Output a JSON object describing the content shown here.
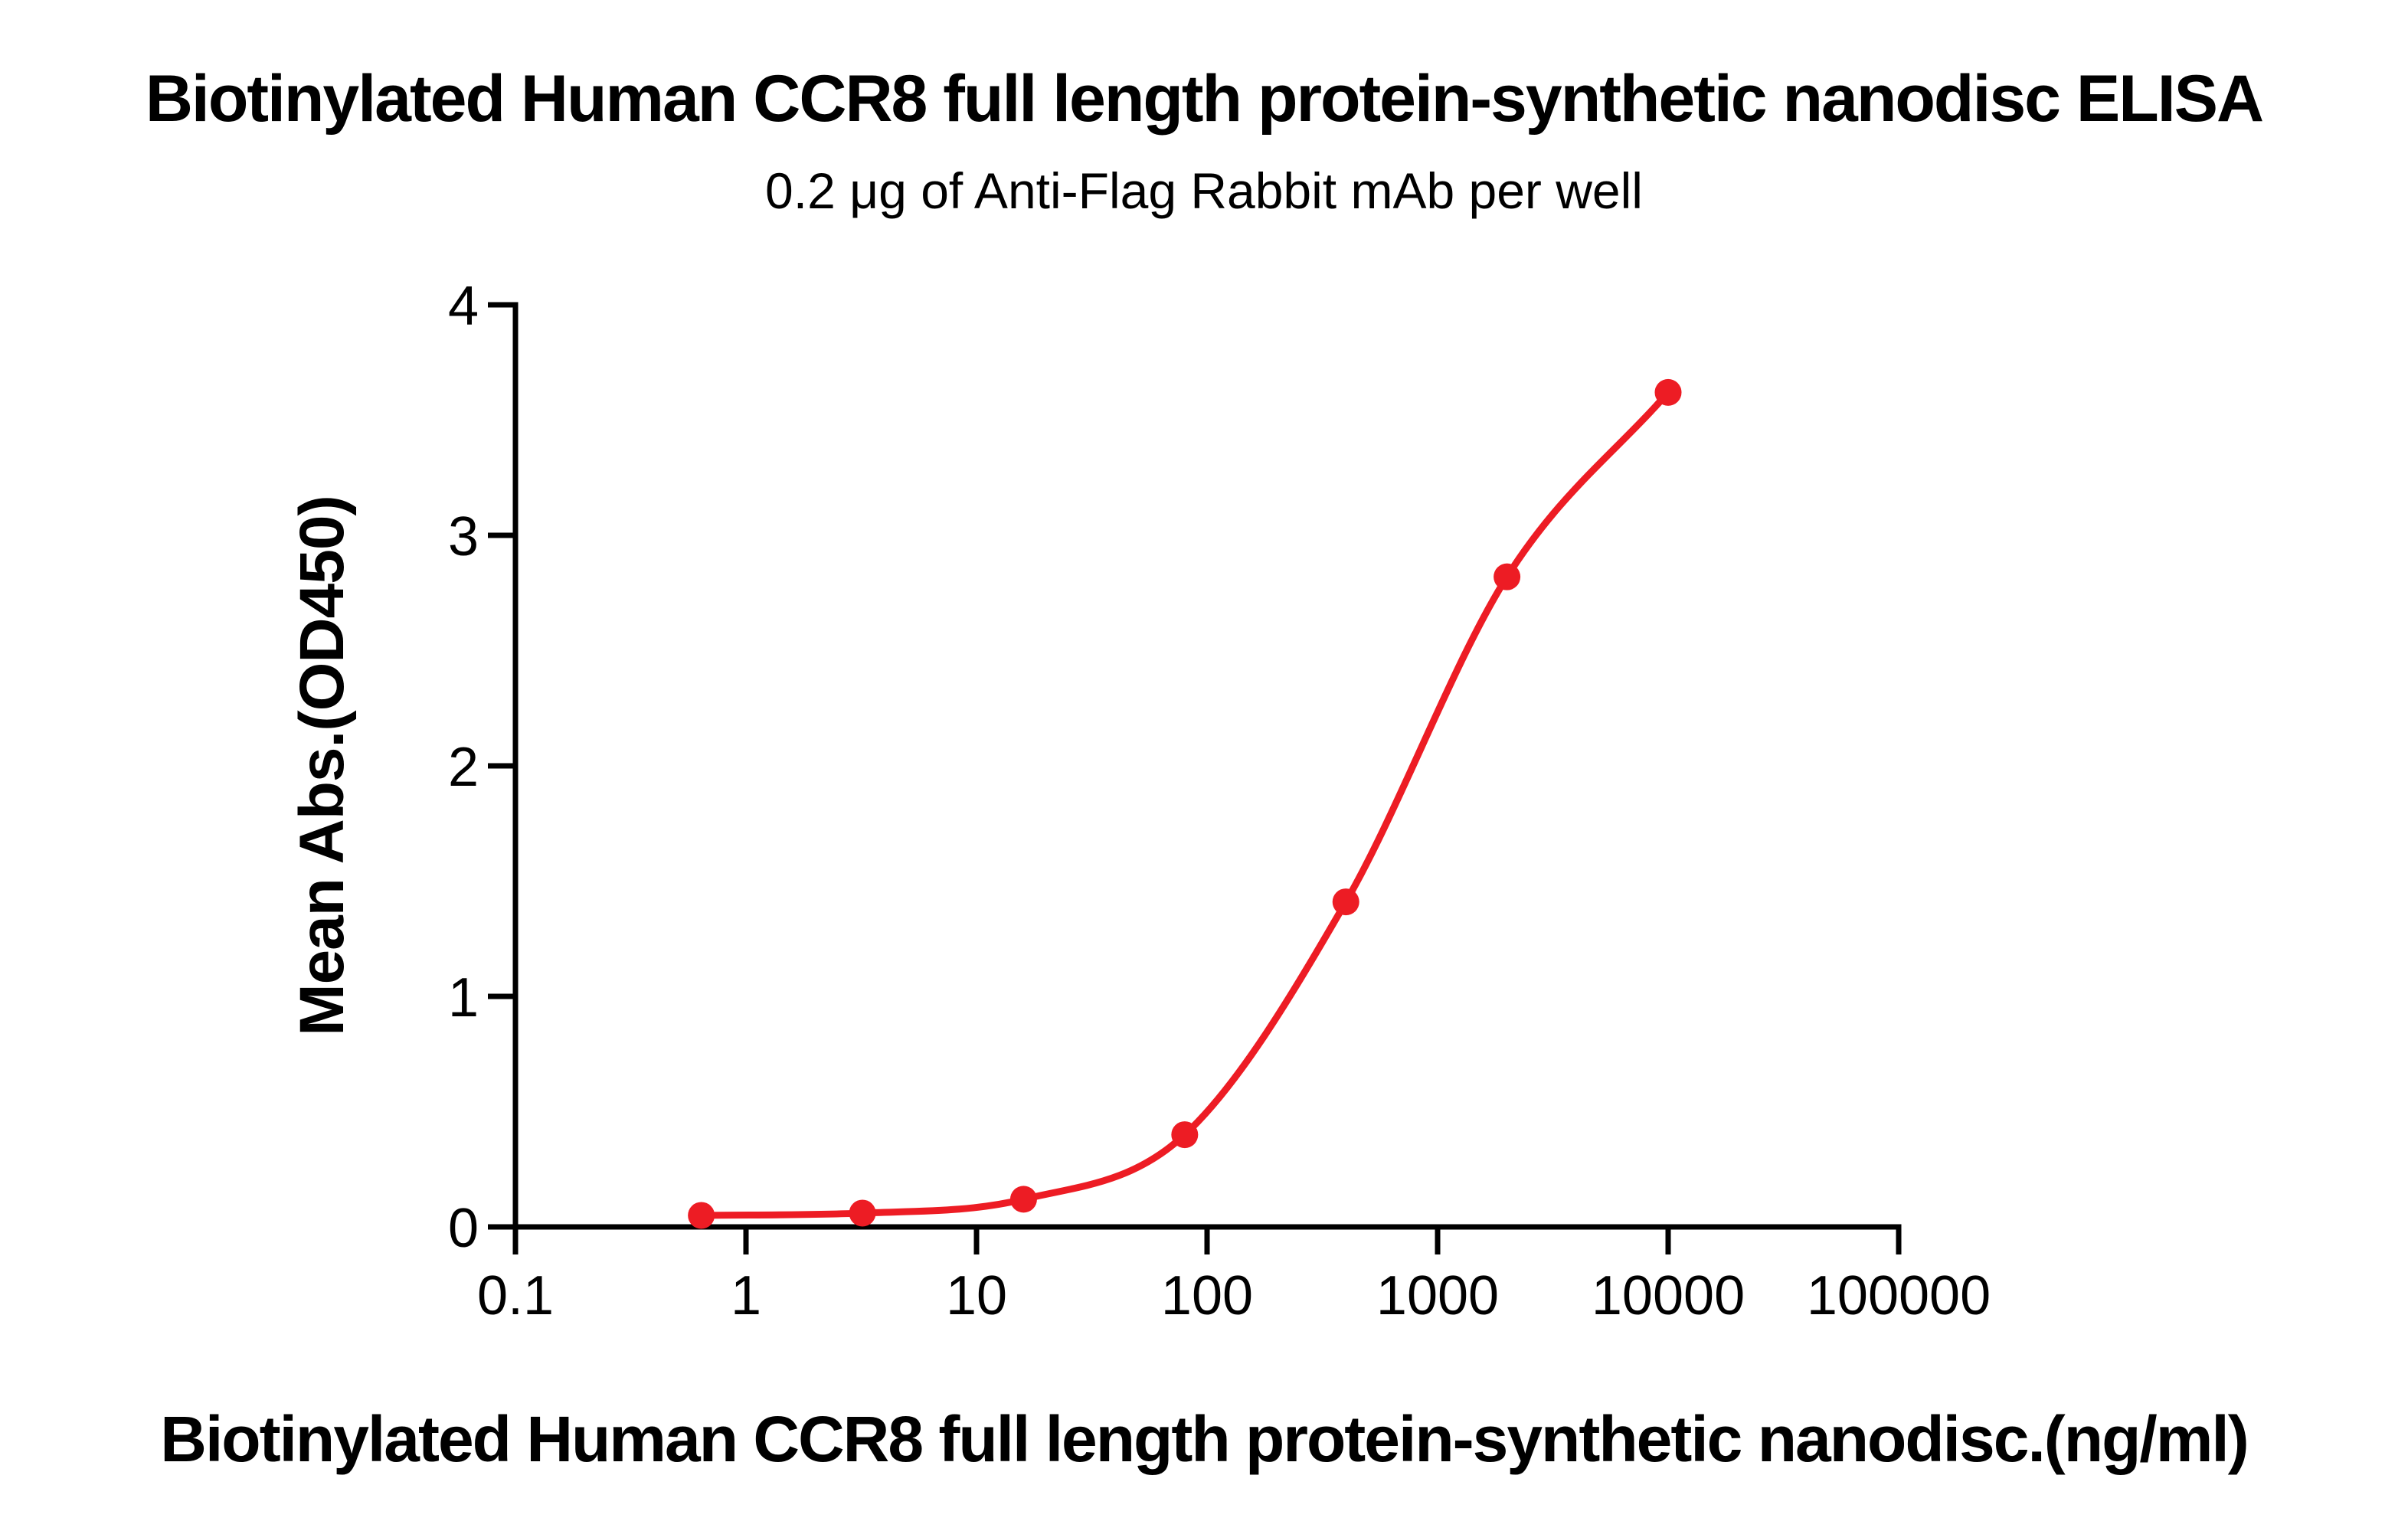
{
  "figure": {
    "background_color": "#FFFFFF",
    "text_color": "#000000",
    "axis_color": "#000000"
  },
  "chart_data": {
    "type": "scatter",
    "title": "Biotinylated Human CCR8 full length protein-synthetic nanodisc ELISA",
    "subtitle": "0.2 μg of Anti-Flag Rabbit mAb per well",
    "xlabel": "Biotinylated Human CCR8 full length protein-synthetic nanodisc.(ng/ml)",
    "ylabel": "Mean Abs.(OD450)",
    "xscale": "log",
    "xlim": [
      0.1,
      100000
    ],
    "ylim": [
      0,
      4
    ],
    "x_ticks": [
      0.1,
      1,
      10,
      100,
      1000,
      10000,
      100000
    ],
    "x_tick_labels": [
      "0.1",
      "1",
      "10",
      "100",
      "1000",
      "10000",
      "100000"
    ],
    "y_ticks": [
      0,
      1,
      2,
      3,
      4
    ],
    "y_tick_labels": [
      "0",
      "1",
      "2",
      "3",
      "4"
    ],
    "grid": false,
    "legend": null,
    "series": [
      {
        "color": "#ED1C24",
        "marker": "circle",
        "curve": "smooth sigmoid fit through points",
        "points": [
          {
            "x": 0.64,
            "y": 0.05
          },
          {
            "x": 3.2,
            "y": 0.06
          },
          {
            "x": 16,
            "y": 0.12
          },
          {
            "x": 80,
            "y": 0.4
          },
          {
            "x": 400,
            "y": 1.41
          },
          {
            "x": 2000,
            "y": 2.82
          },
          {
            "x": 10000,
            "y": 3.62
          }
        ]
      }
    ]
  }
}
